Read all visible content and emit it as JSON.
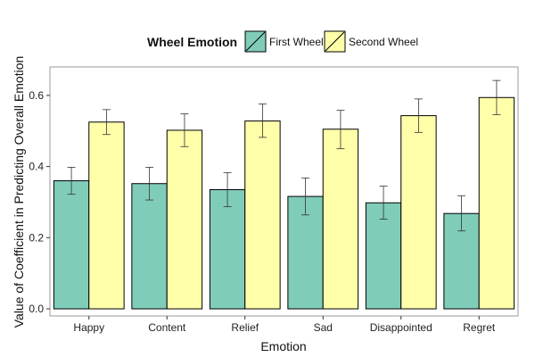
{
  "chart_data": {
    "type": "bar",
    "xlabel": "Emotion",
    "ylabel": "Value of Coefficient in Predicting Overall Emotion",
    "legend": {
      "title": "Wheel Emotion",
      "placement": "top"
    },
    "categories": [
      "Happy",
      "Content",
      "Relief",
      "Sad",
      "Disappointed",
      "Regret"
    ],
    "series": [
      {
        "name": "First Wheel",
        "color": "#7fccb9",
        "values": [
          0.36,
          0.352,
          0.335,
          0.316,
          0.298,
          0.268
        ],
        "err_low": [
          0.322,
          0.306,
          0.287,
          0.264,
          0.252,
          0.219
        ],
        "err_high": [
          0.398,
          0.398,
          0.383,
          0.368,
          0.345,
          0.318
        ]
      },
      {
        "name": "Second Wheel",
        "color": "#ffffaa",
        "values": [
          0.525,
          0.502,
          0.528,
          0.505,
          0.543,
          0.594
        ],
        "err_low": [
          0.49,
          0.456,
          0.482,
          0.45,
          0.496,
          0.546
        ],
        "err_high": [
          0.56,
          0.548,
          0.576,
          0.558,
          0.59,
          0.642
        ]
      }
    ],
    "ylim": [
      -0.02,
      0.68
    ],
    "yticks": [
      "0.0",
      "0.2",
      "0.4",
      "0.6"
    ],
    "grid": false
  }
}
